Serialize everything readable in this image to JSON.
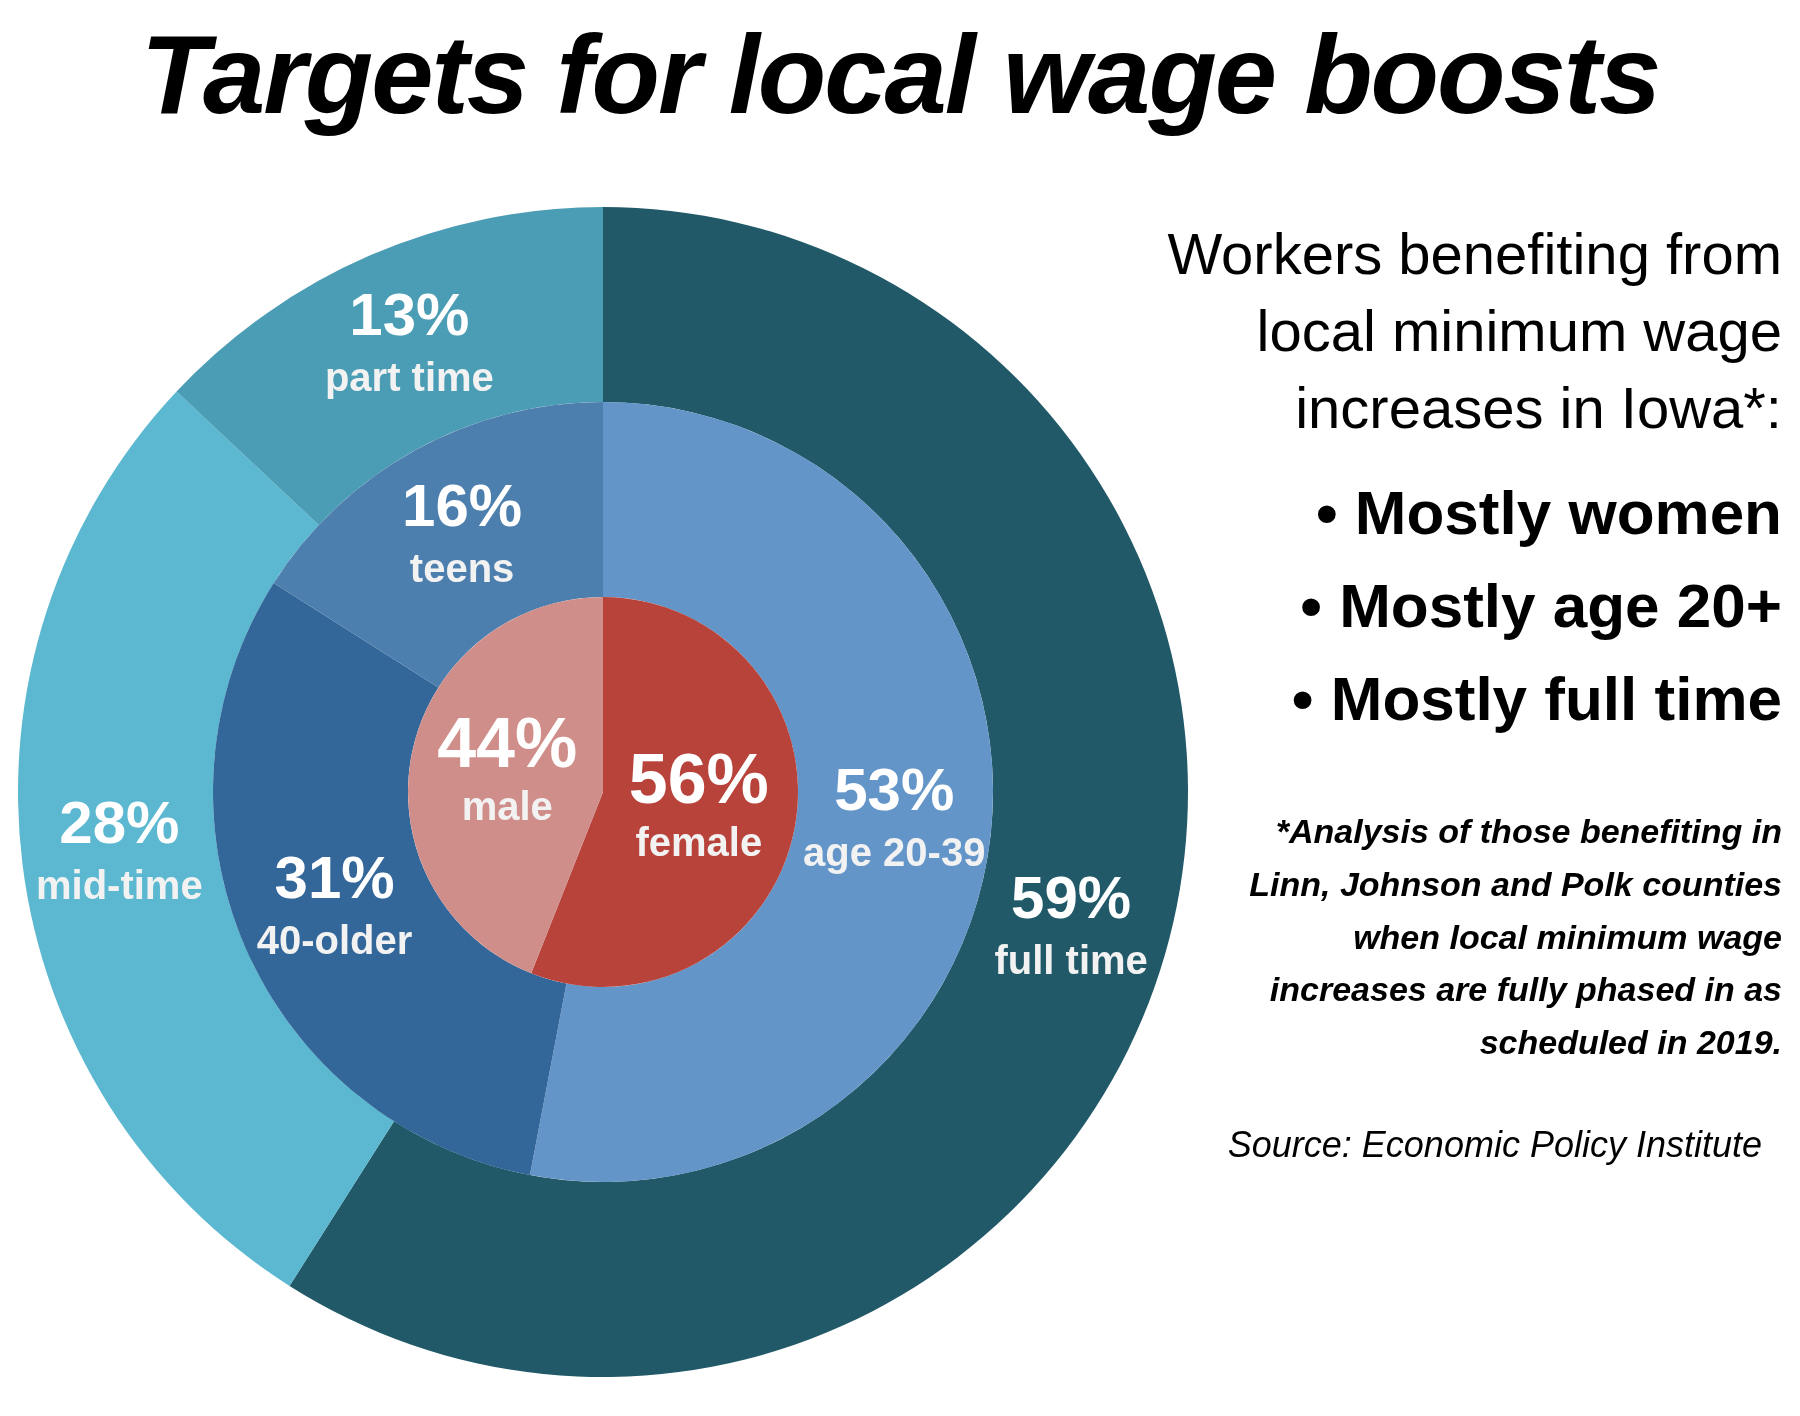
{
  "chart_data": [
    {
      "type": "donut",
      "title": "Targets for local wage boosts",
      "subtitle": "Workers benefiting from local minimum wage increases in Iowa*:",
      "categories": [
        "full time",
        "mid-time",
        "part time"
      ],
      "values": [
        59,
        28,
        13
      ],
      "value_labels": [
        "59%",
        "28%",
        "13%"
      ],
      "colors": [
        "#215968",
        "#5bb8d0",
        "#4a9db5"
      ],
      "annotations": [
        "• Mostly women",
        "• Mostly age 20+",
        "• Mostly full time",
        "*Analysis of those benefiting in Linn, Johnson and Polk counties when local minimum wage increases are fully phased in as scheduled in 2019.",
        "Source: Economic Policy Institute"
      ]
    },
    {
      "type": "donut",
      "categories": [
        "age 20-39",
        "40-older",
        "teens"
      ],
      "values": [
        53,
        31,
        16
      ],
      "value_labels": [
        "53%",
        "31%",
        "16%"
      ],
      "colors": [
        "#6495c8",
        "#336699",
        "#4d7fae"
      ]
    },
    {
      "type": "pie",
      "categories": [
        "female",
        "male"
      ],
      "values": [
        56,
        44
      ],
      "value_labels": [
        "56%",
        "44%"
      ],
      "colors": [
        "#b8433a",
        "#d08e8a"
      ]
    }
  ]
}
